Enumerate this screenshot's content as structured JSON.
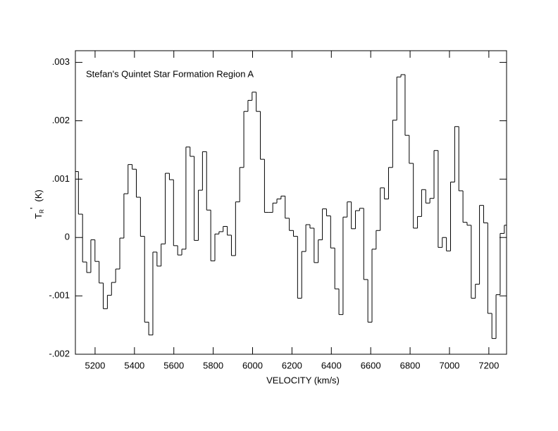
{
  "chart_data": {
    "type": "line",
    "step": true,
    "annotation": "Stefan's Quintet Star Formation Region A",
    "xlabel": "VELOCITY (km/s)",
    "ylabel": "T",
    "ylabel_sub": "R",
    "ylabel_sup": "'",
    "ylabel_unit": "(K)",
    "color": "#000000",
    "xlim": [
      5100,
      7290
    ],
    "xticks": [
      5200,
      5400,
      5600,
      5800,
      6000,
      6200,
      6400,
      6600,
      6800,
      7000,
      7200
    ],
    "ylim": [
      -0.002,
      0.0032
    ],
    "yticks": [
      {
        "value": -0.002,
        "label": "-.002"
      },
      {
        "value": -0.001,
        "label": "-.001"
      },
      0,
      {
        "value": 0.001,
        "label": ".001"
      },
      {
        "value": 0.002,
        "label": ".002"
      },
      {
        "value": 0.003,
        "label": ".003"
      }
    ],
    "x": [
      5105,
      5126,
      5147,
      5168,
      5189,
      5210,
      5231,
      5252,
      5273,
      5294,
      5315,
      5336,
      5357,
      5378,
      5399,
      5420,
      5441,
      5462,
      5483,
      5504,
      5525,
      5546,
      5567,
      5588,
      5609,
      5630,
      5651,
      5672,
      5693,
      5714,
      5735,
      5756,
      5777,
      5798,
      5819,
      5840,
      5861,
      5882,
      5903,
      5924,
      5945,
      5966,
      5987,
      6008,
      6029,
      6050,
      6071,
      6092,
      6113,
      6134,
      6155,
      6176,
      6197,
      6218,
      6239,
      6260,
      6281,
      6302,
      6323,
      6344,
      6365,
      6386,
      6407,
      6428,
      6449,
      6470,
      6491,
      6512,
      6533,
      6554,
      6575,
      6596,
      6617,
      6638,
      6659,
      6680,
      6701,
      6722,
      6743,
      6764,
      6785,
      6806,
      6827,
      6848,
      6869,
      6890,
      6911,
      6932,
      6953,
      6974,
      6995,
      7016,
      7037,
      7058,
      7079,
      7100,
      7121,
      7142,
      7163,
      7184,
      7205,
      7226,
      7247,
      7268,
      7289
    ],
    "values": [
      0.00113,
      0.0004,
      -0.00042,
      -0.0006,
      -4e-05,
      -0.00041,
      -0.00078,
      -0.00122,
      -0.00099,
      -0.00077,
      -0.00054,
      -1e-05,
      0.00075,
      0.00125,
      0.00117,
      0.00069,
      2e-05,
      -0.00145,
      -0.00167,
      -0.00025,
      -0.00049,
      -0.00011,
      0.0011,
      0.00099,
      -0.00014,
      -0.0003,
      -0.0002,
      0.00155,
      0.00139,
      -5e-05,
      0.00081,
      0.00147,
      0.00047,
      -0.0004,
      6e-05,
      0.0001,
      0.00019,
      4e-05,
      -0.00031,
      0.00061,
      0.0012,
      0.00216,
      0.00235,
      0.00249,
      0.00216,
      0.00134,
      0.00043,
      0.00043,
      0.00059,
      0.00066,
      0.00071,
      0.00033,
      0.00012,
      2e-05,
      -0.00104,
      -0.00024,
      0.00022,
      0.00016,
      -0.00043,
      -4e-05,
      0.00049,
      0.00037,
      -0.00018,
      -0.00088,
      -0.00132,
      0.00035,
      0.00061,
      0.00015,
      0.00046,
      0.0005,
      -0.00072,
      -0.00145,
      -0.0002,
      0.00012,
      0.00085,
      0.00066,
      0.0012,
      0.00201,
      0.00275,
      0.00279,
      0.00175,
      0.00127,
      0.00016,
      0.00036,
      0.00082,
      0.00059,
      0.00067,
      0.00149,
      -0.00017,
      0,
      -0.00023,
      0.00095,
      0.0019,
      0.0008,
      0.00026,
      0.00021,
      -0.00104,
      -0.0008,
      0.00055,
      0.00025,
      -0.0013,
      -0.00173,
      -0.00098,
      7e-05,
      0.00021
    ]
  }
}
